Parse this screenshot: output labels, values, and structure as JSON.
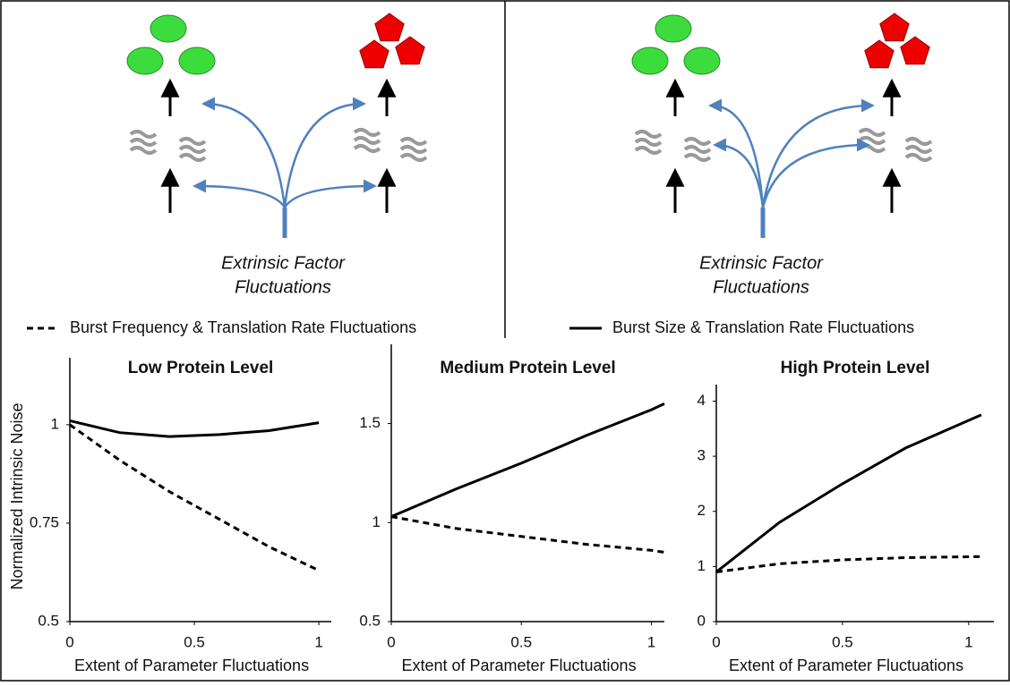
{
  "diagrams": [
    {
      "label_lines": [
        "Extrinsic Factor",
        "Fluctuations"
      ]
    },
    {
      "label_lines": [
        "Extrinsic Factor",
        "Fluctuations"
      ]
    }
  ],
  "legend": [
    {
      "name": "Burst Frequency & Translation Rate Fluctuations",
      "style": "dashed"
    },
    {
      "name": "Burst Size & Translation Rate Fluctuations",
      "style": "solid"
    }
  ],
  "chart_data": [
    {
      "type": "line",
      "title": "Low Protein Level",
      "ylabel": "Normalized  Intrinsic Noise",
      "xlabel": "Extent of Parameter Fluctuations",
      "x": [
        0,
        0.2,
        0.4,
        0.6,
        0.8,
        1
      ],
      "series": [
        {
          "style": "solid",
          "color": "#000000",
          "values": [
            1.01,
            0.98,
            0.97,
            0.975,
            0.985,
            1.005
          ]
        },
        {
          "style": "dashed",
          "color": "#000000",
          "values": [
            1.0,
            0.91,
            0.83,
            0.76,
            0.69,
            0.63
          ]
        }
      ],
      "xlim": [
        0,
        1.05
      ],
      "xticks": [
        0,
        0.5,
        1
      ],
      "ylim": [
        0.5,
        1.17
      ],
      "yticks": [
        0.5,
        0.75,
        1
      ]
    },
    {
      "type": "line",
      "title": "Medium Protein Level",
      "xlabel": "Extent of Parameter Fluctuations",
      "x": [
        0,
        0.25,
        0.5,
        0.75,
        1,
        1.05
      ],
      "series": [
        {
          "style": "solid",
          "color": "#000000",
          "values": [
            1.03,
            1.17,
            1.3,
            1.44,
            1.57,
            1.6
          ]
        },
        {
          "style": "dashed",
          "color": "#000000",
          "values": [
            1.03,
            0.97,
            0.93,
            0.89,
            0.86,
            0.85
          ]
        }
      ],
      "xlim": [
        0,
        1.05
      ],
      "xticks": [
        0,
        0.5,
        1
      ],
      "ylim": [
        0.5,
        1.9
      ],
      "yticks": [
        0.5,
        1,
        1.5
      ]
    },
    {
      "type": "line",
      "title": "High Protein Level",
      "xlabel": "Extent of Parameter Fluctuations",
      "x": [
        0,
        0.25,
        0.5,
        0.75,
        1.05
      ],
      "series": [
        {
          "style": "solid",
          "color": "#000000",
          "values": [
            0.9,
            1.8,
            2.5,
            3.15,
            3.75
          ]
        },
        {
          "style": "dashed",
          "color": "#000000",
          "values": [
            0.9,
            1.05,
            1.12,
            1.16,
            1.18
          ]
        }
      ],
      "xlim": [
        0,
        1.1
      ],
      "xticks": [
        0,
        0.5,
        1
      ],
      "ylim": [
        0,
        4.3
      ],
      "yticks": [
        0,
        1,
        2,
        3,
        4
      ]
    }
  ]
}
